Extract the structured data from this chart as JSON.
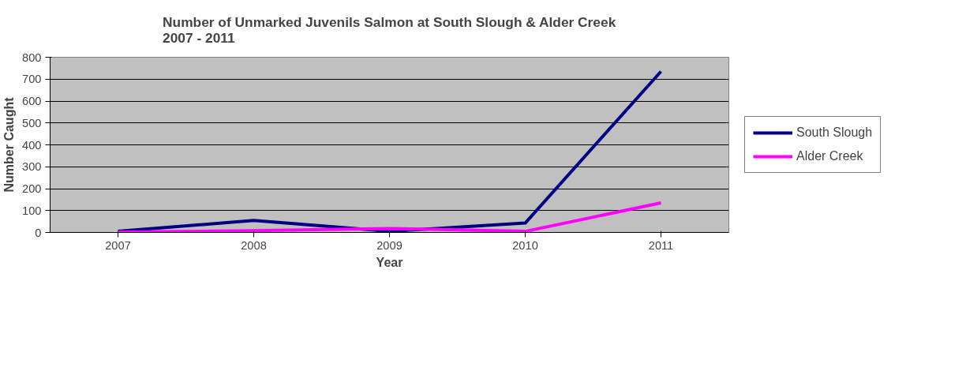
{
  "chart_data": {
    "type": "line",
    "title": "Number of Unmarked Juvenils Salmon at South Slough & Alder Creek\n2007 - 2011",
    "xlabel": "Year",
    "ylabel": "Number Caught",
    "categories": [
      "2007",
      "2008",
      "2009",
      "2010",
      "2011"
    ],
    "series": [
      {
        "name": "South Slough",
        "color": "#000080",
        "values": [
          5,
          55,
          5,
          43,
          735
        ]
      },
      {
        "name": "Alder Creek",
        "color": "#ff00ff",
        "values": [
          2,
          8,
          18,
          5,
          135
        ]
      }
    ],
    "ylim": [
      0,
      800
    ],
    "yticks": [
      0,
      100,
      200,
      300,
      400,
      500,
      600,
      700,
      800
    ],
    "grid": "y",
    "legend": "right",
    "marker": "none",
    "line_style": "solid"
  }
}
